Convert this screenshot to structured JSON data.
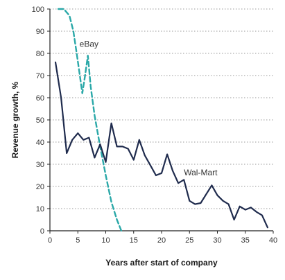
{
  "chart_data": {
    "type": "line",
    "title": "",
    "xlabel": "Years after start of company",
    "ylabel": "Revenue growth, %",
    "xlim": [
      0,
      40
    ],
    "ylim": [
      0,
      100
    ],
    "x_ticks": [
      0,
      5,
      10,
      15,
      20,
      25,
      30,
      35,
      40
    ],
    "y_ticks": [
      0,
      10,
      20,
      30,
      40,
      50,
      60,
      70,
      80,
      90,
      100
    ],
    "grid": "horizontal dotted",
    "series": [
      {
        "name": "eBay",
        "color": "#2aa8a8",
        "style": "dashed",
        "points": [
          [
            1.5,
            100
          ],
          [
            2.5,
            100
          ],
          [
            3.5,
            97
          ],
          [
            4.2,
            90
          ],
          [
            4.8,
            80
          ],
          [
            5.3,
            71
          ],
          [
            5.8,
            62
          ],
          [
            6.3,
            70
          ],
          [
            6.8,
            79
          ],
          [
            7.3,
            65
          ],
          [
            8,
            52
          ],
          [
            9,
            38
          ],
          [
            10,
            25
          ],
          [
            11,
            13
          ],
          [
            12,
            5
          ],
          [
            12.8,
            0
          ]
        ]
      },
      {
        "name": "Wal-Mart",
        "color": "#1f2b4d",
        "style": "solid",
        "points": [
          [
            1,
            76
          ],
          [
            2,
            60
          ],
          [
            3,
            35
          ],
          [
            4,
            41
          ],
          [
            5,
            44
          ],
          [
            6,
            41
          ],
          [
            7,
            42
          ],
          [
            8,
            33
          ],
          [
            9,
            39
          ],
          [
            10,
            31
          ],
          [
            11,
            48.5
          ],
          [
            12,
            38
          ],
          [
            13,
            38
          ],
          [
            14,
            37
          ],
          [
            15,
            32
          ],
          [
            16,
            41
          ],
          [
            17,
            34
          ],
          [
            18,
            29.5
          ],
          [
            19,
            25
          ],
          [
            20,
            26
          ],
          [
            21,
            34.5
          ],
          [
            22,
            27
          ],
          [
            23,
            21.5
          ],
          [
            24,
            23
          ],
          [
            25,
            13.5
          ],
          [
            26,
            12
          ],
          [
            27,
            12.5
          ],
          [
            28,
            16.5
          ],
          [
            29,
            20.5
          ],
          [
            30,
            16
          ],
          [
            31,
            13.5
          ],
          [
            32,
            12
          ],
          [
            33,
            5
          ],
          [
            34,
            11
          ],
          [
            35,
            9.5
          ],
          [
            36,
            10.5
          ],
          [
            37,
            8.5
          ],
          [
            38,
            7
          ],
          [
            39,
            1.5
          ]
        ]
      }
    ],
    "annotations": [
      {
        "text": "eBay",
        "x": 7,
        "y": 83
      },
      {
        "text": "Wal-Mart",
        "x": 27,
        "y": 25
      }
    ]
  }
}
